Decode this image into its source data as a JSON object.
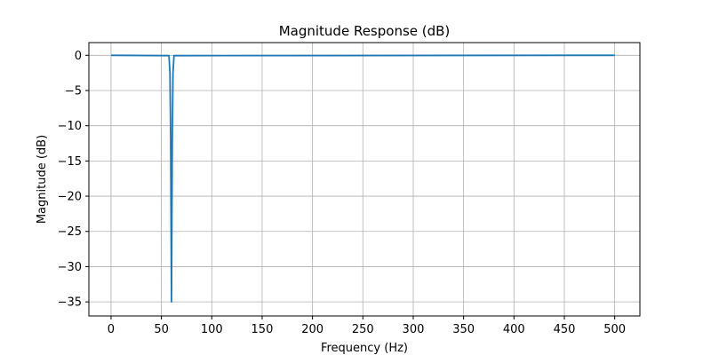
{
  "chart_data": {
    "type": "line",
    "title": "Magnitude Response (dB)",
    "xlabel": "Frequency (Hz)",
    "ylabel": "Magnitude (dB)",
    "xlim": [
      -22,
      525
    ],
    "ylim": [
      -37,
      1.8
    ],
    "xticks": [
      0,
      50,
      100,
      150,
      200,
      250,
      300,
      350,
      400,
      450,
      500
    ],
    "xtick_labels": [
      "0",
      "50",
      "100",
      "150",
      "200",
      "250",
      "300",
      "350",
      "400",
      "450",
      "500"
    ],
    "yticks": [
      0,
      -5,
      -10,
      -15,
      -20,
      -25,
      -30,
      -35
    ],
    "ytick_labels": [
      "0",
      "−5",
      "−10",
      "−15",
      "−20",
      "−25",
      "−30",
      "−35"
    ],
    "grid": true,
    "colors": {
      "line": "#1f77b4",
      "grid": "#b0b0b0",
      "axes": "#000000",
      "background": "#ffffff"
    },
    "series": [
      {
        "x": [
          0,
          57.5,
          58.5,
          59.2,
          60.0,
          60.8,
          61.5,
          62.5,
          500
        ],
        "y": [
          0,
          -0.05,
          -2.5,
          -12.0,
          -35.0,
          -12.0,
          -2.5,
          -0.05,
          0
        ]
      }
    ]
  }
}
